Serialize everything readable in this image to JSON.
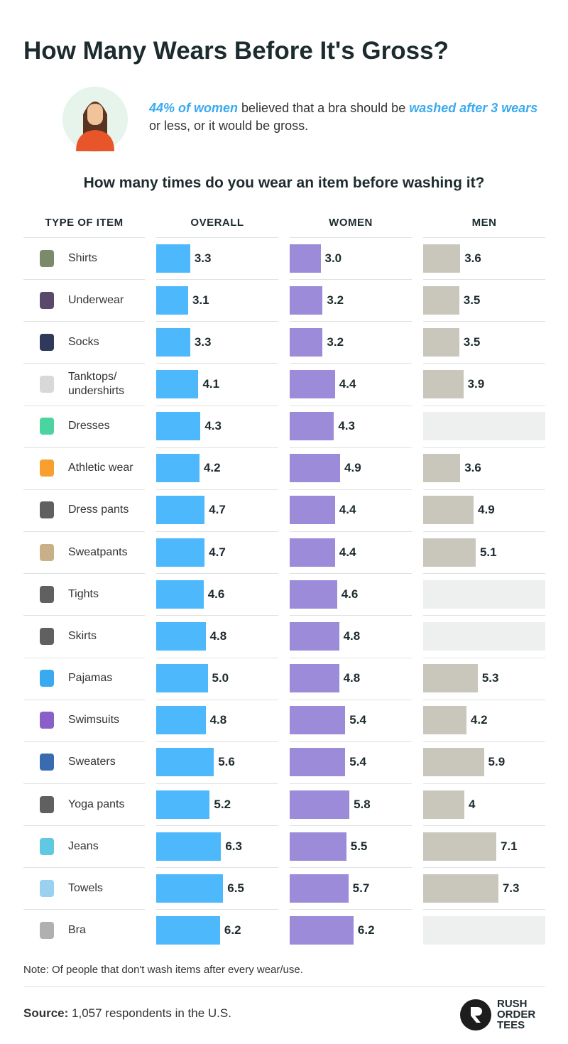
{
  "title": "How Many Wears Before It's Gross?",
  "intro": [
    "44% of women",
    " believed that a bra should be ",
    "washed after 3 wears",
    " or less, or it would be gross."
  ],
  "chart_data": {
    "type": "bar",
    "title": "How many times do you wear an item before washing it?",
    "category_header": "TYPE OF ITEM",
    "categories": [
      "Shirts",
      "Underwear",
      "Socks",
      "Tanktops/ undershirts",
      "Dresses",
      "Athletic wear",
      "Dress pants",
      "Sweatpants",
      "Tights",
      "Skirts",
      "Pajamas",
      "Swimsuits",
      "Sweaters",
      "Yoga pants",
      "Jeans",
      "Towels",
      "Bra"
    ],
    "series": [
      {
        "name": "OVERALL",
        "color": "#4db8fb",
        "values": [
          3.3,
          3.1,
          3.3,
          4.1,
          4.3,
          4.2,
          4.7,
          4.7,
          4.6,
          4.8,
          5,
          4.8,
          5.6,
          5.2,
          6.3,
          6.5,
          6.2
        ],
        "value_labels": [
          "3.3",
          "3.1",
          "3.3",
          "4.1",
          "4.3",
          "4.2",
          "4.7",
          "4.7",
          "4.6",
          "4.8",
          "5.0",
          "4.8",
          "5.6",
          "5.2",
          "6.3",
          "6.5",
          "6.2"
        ]
      },
      {
        "name": "WOMEN",
        "color": "#9b8bd9",
        "values": [
          3,
          3.2,
          3.2,
          4.4,
          4.3,
          4.9,
          4.4,
          4.4,
          4.6,
          4.8,
          4.8,
          5.4,
          5.4,
          5.8,
          5.5,
          5.7,
          6.2
        ],
        "value_labels": [
          "3.0",
          "3.2",
          "3.2",
          "4.4",
          "4.3",
          "4.9",
          "4.4",
          "4.4",
          "4.6",
          "4.8",
          "4.8",
          "5.4",
          "5.4",
          "5.8",
          "5.5",
          "5.7",
          "6.2"
        ]
      },
      {
        "name": "MEN",
        "color": "#c9c7bc",
        "values": [
          3.6,
          3.5,
          3.5,
          3.9,
          null,
          3.6,
          4.9,
          5.1,
          null,
          null,
          5.3,
          4.2,
          5.9,
          4,
          7.1,
          7.3,
          null
        ]
      }
    ]
  },
  "note": "Note: Of people that don't wash items after every wear/use.",
  "source": {
    "label": "Source:",
    "text": "1,057 respondents in the U.S."
  },
  "logo": [
    "RUSH",
    "ORDER",
    "TEES"
  ]
}
